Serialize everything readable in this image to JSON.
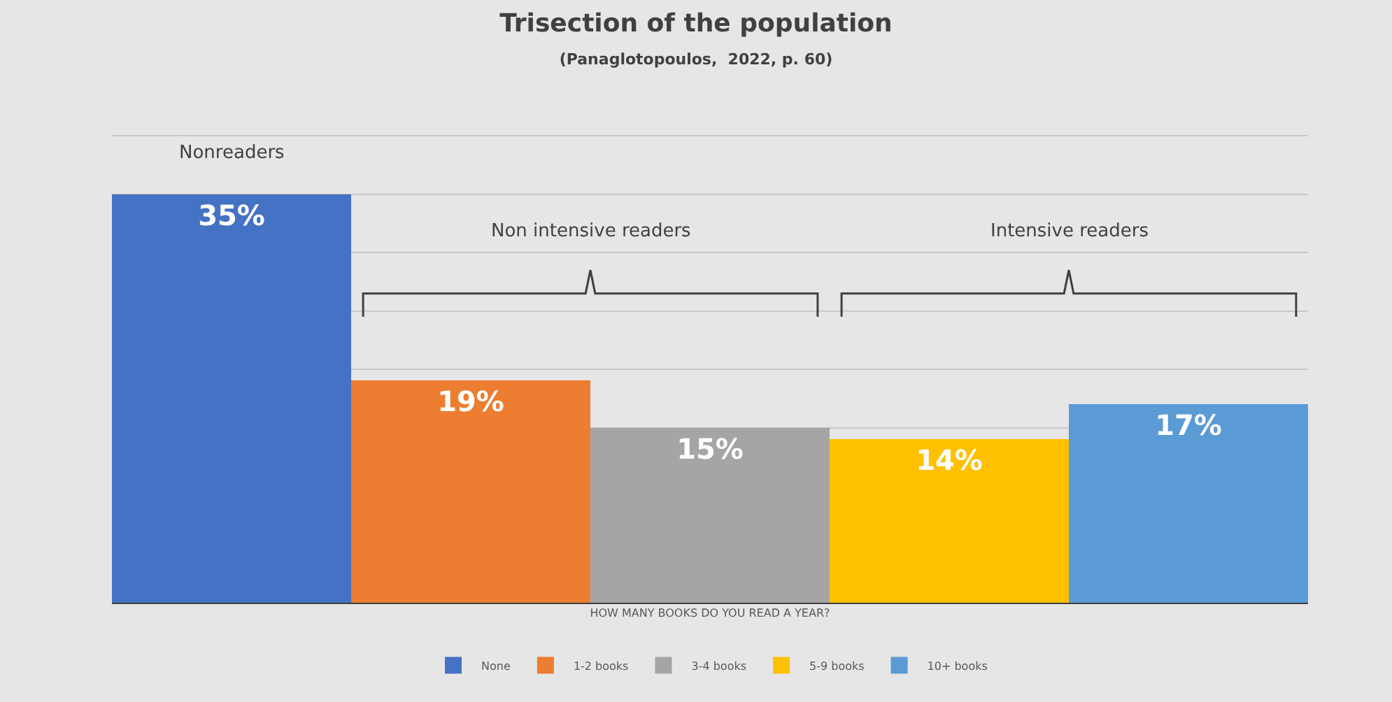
{
  "chart_data": {
    "type": "bar",
    "title": "Trisection of the population",
    "subtitle": "(Panaglotopoulos,  2022, p. 60)",
    "xlabel": "HOW MANY BOOKS DO YOU READ A YEAR?",
    "categories": [
      null
    ],
    "series": [
      {
        "name": "None",
        "color": "#4472c4",
        "values": [
          35
        ],
        "value_labels": [
          "35%"
        ]
      },
      {
        "name": "1-2 books",
        "color": "#ed7d31",
        "values": [
          19
        ],
        "value_labels": [
          "19%"
        ]
      },
      {
        "name": "3-4 books",
        "color": "#a5a5a5",
        "values": [
          15
        ],
        "value_labels": [
          "15%"
        ]
      },
      {
        "name": "5-9 books",
        "color": "#ffc000",
        "values": [
          14
        ],
        "value_labels": [
          "14%"
        ]
      },
      {
        "name": "10+ books",
        "color": "#5b9bd5",
        "values": [
          17
        ],
        "value_labels": [
          "17%"
        ]
      }
    ],
    "annotations": [
      "Nonreaders",
      "Non intensive readers",
      "Intensive readers"
    ],
    "tick_labels": false,
    "grid": "y",
    "legend": "bottom"
  }
}
